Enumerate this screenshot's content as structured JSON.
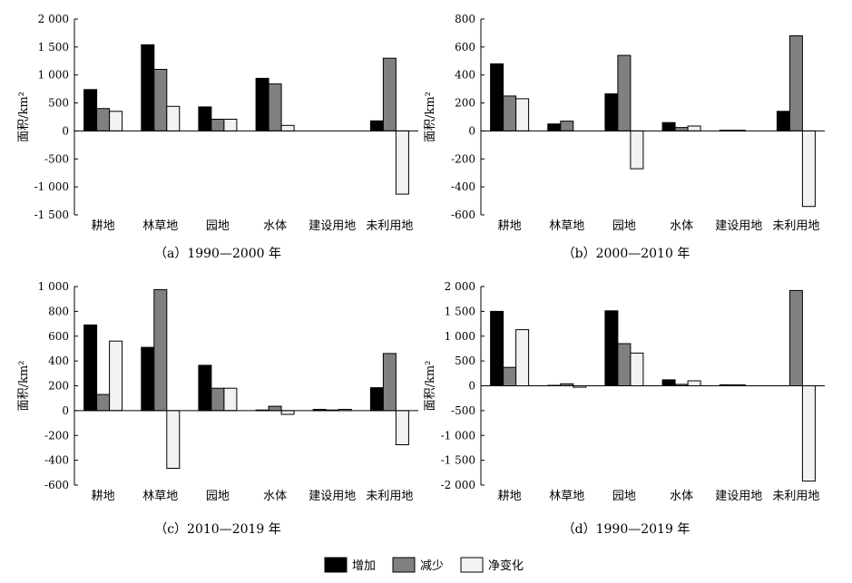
{
  "colors": {
    "增加": "#000000",
    "减少": "#808080",
    "净变化": "#f2f2f2",
    "axis": "#000000"
  },
  "legend": [
    {
      "name": "增加",
      "color": "#000000"
    },
    {
      "name": "减少",
      "color": "#808080"
    },
    {
      "name": "净变化",
      "color": "#f2f2f2"
    }
  ],
  "chart_data": [
    {
      "type": "bar",
      "title": "（a）1990—2000 年",
      "ylabel": "面积/km²",
      "ylim": [
        -1500,
        2000
      ],
      "yticks": [
        -1500,
        -1000,
        -500,
        0,
        500,
        1000,
        1500,
        2000
      ],
      "ytick_labels": [
        "-1 500",
        "-1 000",
        "-500",
        "0",
        "500",
        "1 000",
        "1 500",
        "2 000"
      ],
      "categories": [
        "耕地",
        "林草地",
        "园地",
        "水体",
        "建设用地",
        "未利用地"
      ],
      "series": [
        {
          "name": "增加",
          "values": [
            740,
            1540,
            430,
            940,
            5,
            180
          ]
        },
        {
          "name": "减少",
          "values": [
            400,
            1100,
            210,
            840,
            5,
            1300
          ]
        },
        {
          "name": "净变化",
          "values": [
            350,
            440,
            210,
            100,
            5,
            -1130
          ]
        }
      ]
    },
    {
      "type": "bar",
      "title": "（b）2000—2010 年",
      "ylabel": "面积/km²",
      "ylim": [
        -600,
        800
      ],
      "yticks": [
        -600,
        -400,
        -200,
        0,
        200,
        400,
        600,
        800
      ],
      "ytick_labels": [
        "-600",
        "-400",
        "-200",
        "0",
        "200",
        "400",
        "600",
        "800"
      ],
      "categories": [
        "耕地",
        "林草地",
        "园地",
        "水体",
        "建设用地",
        "未利用地"
      ],
      "series": [
        {
          "name": "增加",
          "values": [
            480,
            50,
            265,
            60,
            5,
            140
          ]
        },
        {
          "name": "减少",
          "values": [
            250,
            70,
            540,
            25,
            5,
            680
          ]
        },
        {
          "name": "净变化",
          "values": [
            230,
            0,
            -270,
            35,
            0,
            -540
          ]
        }
      ]
    },
    {
      "type": "bar",
      "title": "（c）2010—2019 年",
      "ylabel": "面积/km²",
      "ylim": [
        -600,
        1000
      ],
      "yticks": [
        -600,
        -400,
        -200,
        0,
        200,
        400,
        600,
        800,
        1000
      ],
      "ytick_labels": [
        "-600",
        "-400",
        "-200",
        "0",
        "200",
        "400",
        "600",
        "800",
        "1 000"
      ],
      "categories": [
        "耕地",
        "林草地",
        "园地",
        "水体",
        "建设用地",
        "未利用地"
      ],
      "series": [
        {
          "name": "增加",
          "values": [
            690,
            510,
            365,
            5,
            10,
            185
          ]
        },
        {
          "name": "减少",
          "values": [
            130,
            975,
            180,
            35,
            5,
            460
          ]
        },
        {
          "name": "净变化",
          "values": [
            560,
            -465,
            180,
            -30,
            10,
            -275
          ]
        }
      ]
    },
    {
      "type": "bar",
      "title": "（d）1990—2019 年",
      "ylabel": "面积/km²",
      "ylim": [
        -2000,
        2000
      ],
      "yticks": [
        -2000,
        -1500,
        -1000,
        -500,
        0,
        500,
        1000,
        1500,
        2000
      ],
      "ytick_labels": [
        "-2 000",
        "-1 500",
        "-1 000",
        "-500",
        "0",
        "500",
        "1 000",
        "1 500",
        "2 000"
      ],
      "categories": [
        "耕地",
        "林草地",
        "园地",
        "水体",
        "建设用地",
        "未利用地"
      ],
      "series": [
        {
          "name": "增加",
          "values": [
            1500,
            10,
            1510,
            120,
            20,
            0
          ]
        },
        {
          "name": "减少",
          "values": [
            370,
            40,
            850,
            30,
            20,
            1920
          ]
        },
        {
          "name": "净变化",
          "values": [
            1130,
            -30,
            660,
            100,
            0,
            -1920
          ]
        }
      ]
    }
  ]
}
